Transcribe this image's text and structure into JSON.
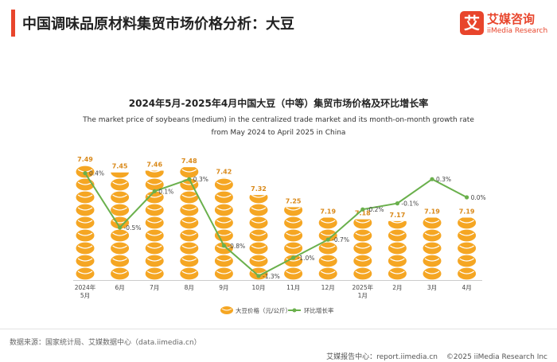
{
  "header": {
    "title": "中国调味品原材料集贸市场价格分析：大豆",
    "accent_color": "#e8452c"
  },
  "logo": {
    "mark": "艾",
    "name_cn": "艾媒咨询",
    "name_en": "iiMedia Research",
    "color": "#e8452c"
  },
  "chart_data": {
    "type": "bar",
    "title": "2024年5月-2025年4月中国大豆（中等）集贸市场价格及环比增长率",
    "subtitle_line1": "The market price of soybeans (medium) in the centralized trade market and its month-on-month growth rate",
    "subtitle_line2": "from May 2024 to April 2025 in China",
    "categories": [
      "2024年\n5月",
      "6月",
      "7月",
      "8月",
      "9月",
      "10月",
      "11月",
      "12月",
      "2025年\n1月",
      "2月",
      "3月",
      "4月"
    ],
    "series": [
      {
        "name": "大豆价格（元/公斤）",
        "kind": "pictorial-bar",
        "icon": "soybean-icon",
        "color": "#f5a623",
        "values": [
          7.49,
          7.45,
          7.46,
          7.48,
          7.42,
          7.32,
          7.25,
          7.19,
          7.18,
          7.17,
          7.19,
          7.19
        ],
        "labels": [
          "7.49",
          "7.45",
          "7.46",
          "7.48",
          "7.42",
          "7.32",
          "7.25",
          "7.19",
          "7.18",
          "7.17",
          "7.19",
          "7.19"
        ]
      },
      {
        "name": "环比增长率",
        "kind": "line",
        "color": "#6ab04c",
        "values": [
          0.4,
          -0.5,
          0.1,
          0.3,
          -0.8,
          -1.3,
          -1.0,
          -0.7,
          -0.2,
          -0.1,
          0.3,
          0.0
        ],
        "labels": [
          "0.4%",
          "-0.5%",
          "0.1%",
          "0.3%",
          "-0.8%",
          "-1.3%",
          "-1.0%",
          "-0.7%",
          "-0.2%",
          "-0.1%",
          "0.3%",
          "0.0%"
        ]
      }
    ],
    "legend_position": "bottom-center",
    "grid": false
  },
  "footer": {
    "source": "数据来源：国家统计局、艾媒数据中心（data.iimedia.cn）",
    "report_center": "艾媒报告中心：report.iimedia.cn",
    "copyright": "©2025  iiMedia Research  Inc"
  }
}
